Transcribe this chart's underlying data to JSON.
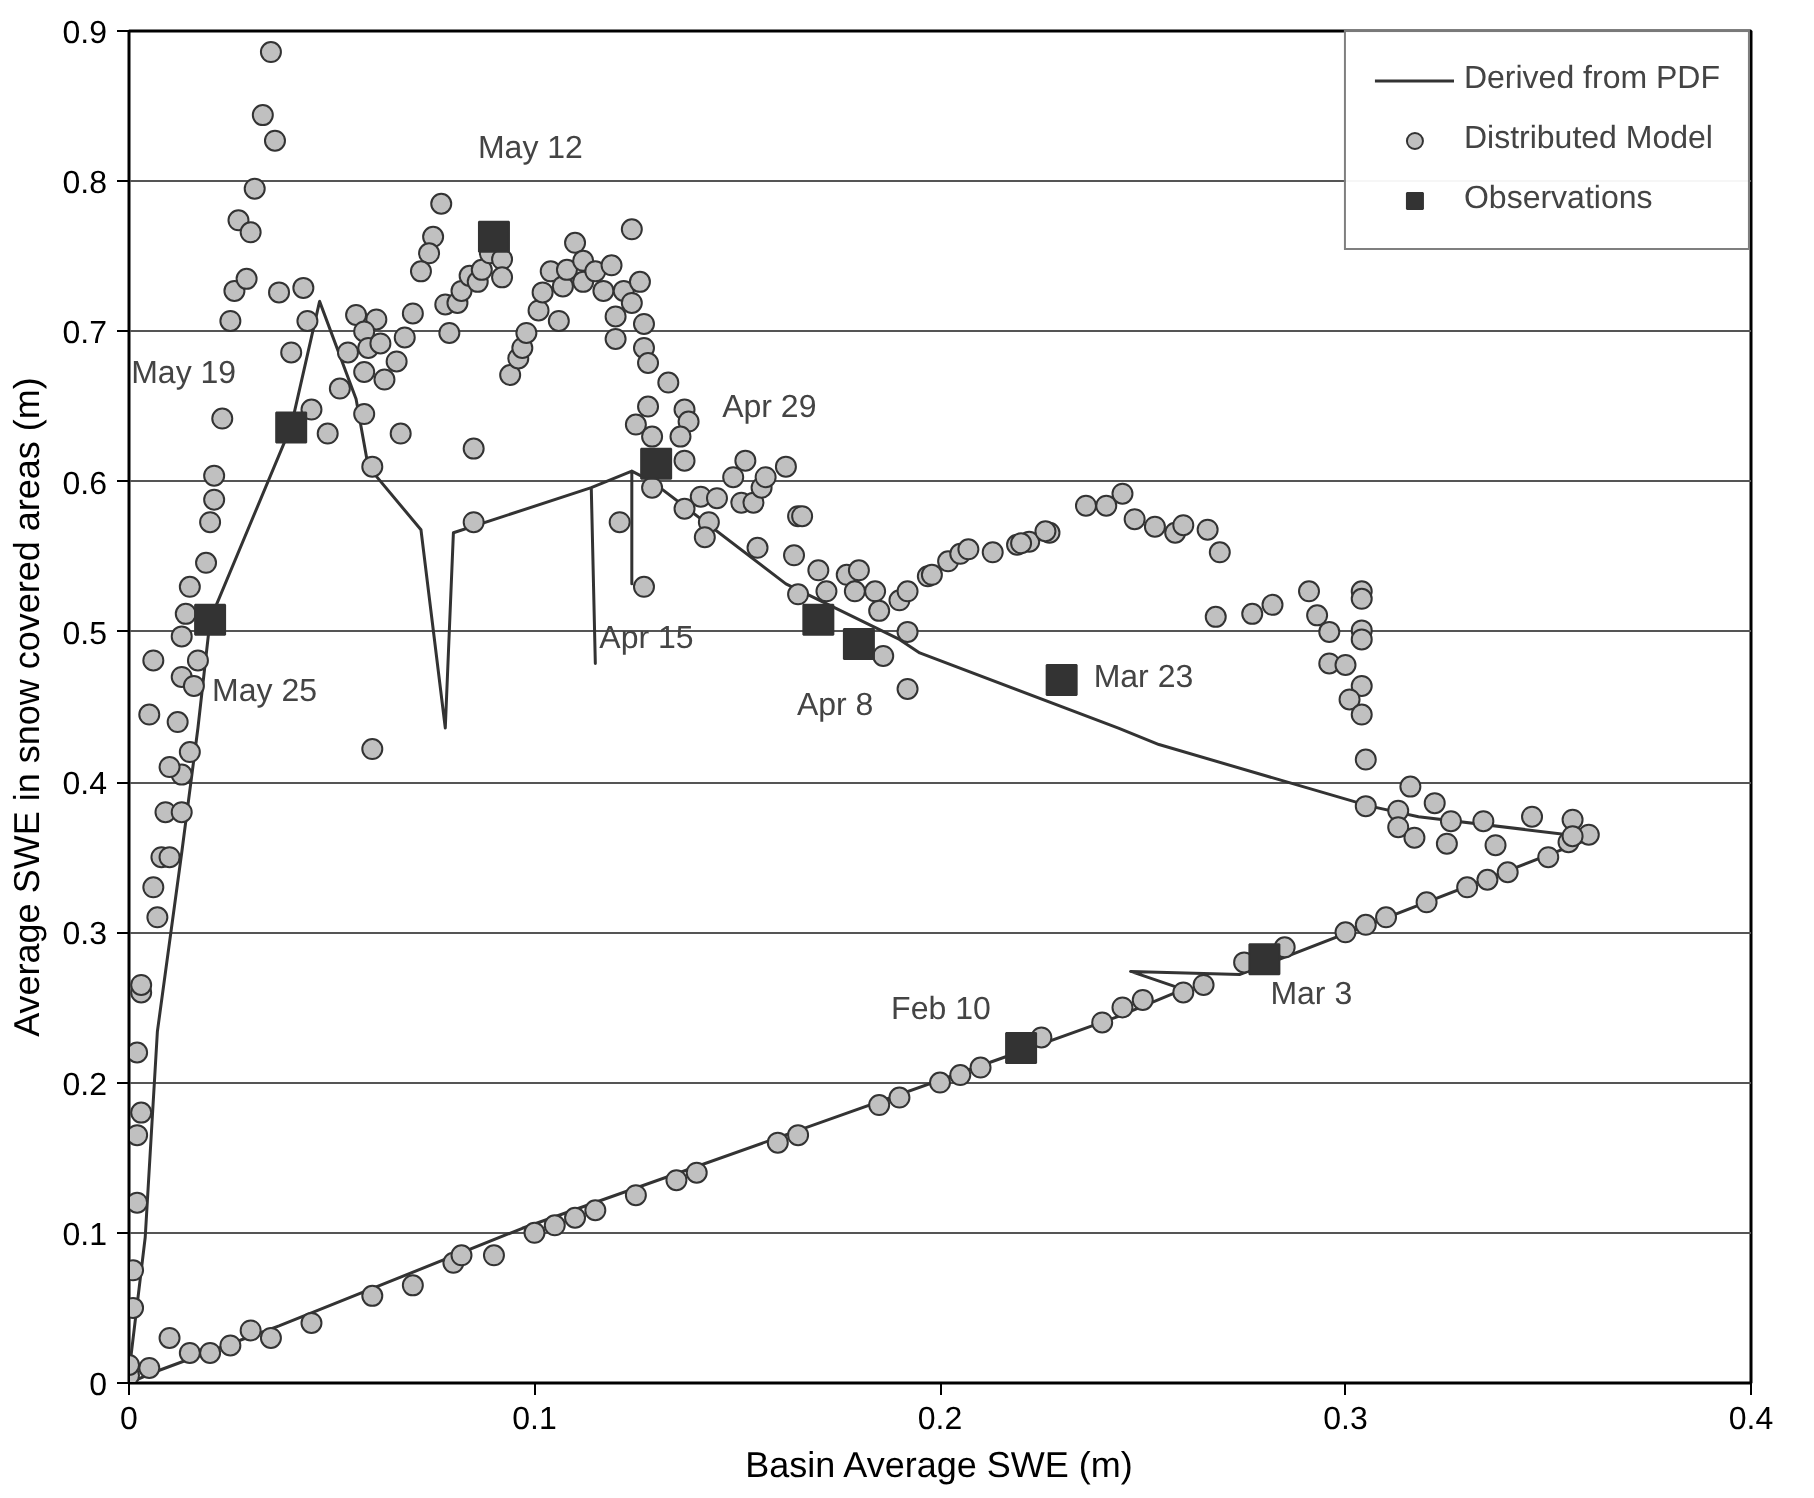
{
  "chart_data": {
    "type": "scatter",
    "xlabel": "Basin Average SWE (m)",
    "ylabel": "Average SWE in snow covered areas (m)",
    "xlim": [
      0,
      0.4
    ],
    "ylim": [
      0,
      0.9
    ],
    "xticks": [
      0,
      0.1,
      0.2,
      0.3,
      0.4
    ],
    "yticks": [
      0,
      0.1,
      0.2,
      0.3,
      0.4,
      0.5,
      0.6,
      0.7,
      0.8,
      0.9
    ],
    "grid": "y",
    "legend": "top right",
    "series": [
      {
        "name": "Derived from PDF",
        "type": "line",
        "marker": "none",
        "color": "#333333",
        "x": [
          0,
          0.007,
          0.037,
          0.097,
          0.215,
          0.244,
          0.26,
          0.247,
          0.274,
          0.361,
          0.318,
          0.306,
          0.254,
          0.244,
          0.195,
          0.19,
          0.162,
          0.129,
          0.124,
          0.124,
          0.124,
          0.114,
          0.115,
          0.114,
          0.08,
          0.078,
          0.072,
          0.059,
          0.056,
          0.047,
          0.04,
          0.02,
          0.017,
          0.013,
          0.007,
          0.004,
          0
        ],
        "values": [
          0,
          0.008,
          0.038,
          0.103,
          0.216,
          0.244,
          0.262,
          0.274,
          0.272,
          0.363,
          0.377,
          0.384,
          0.425,
          0.436,
          0.486,
          0.495,
          0.532,
          0.6,
          0.607,
          0.532,
          0.607,
          0.596,
          0.479,
          0.596,
          0.566,
          0.436,
          0.568,
          0.61,
          0.655,
          0.72,
          0.637,
          0.508,
          0.436,
          0.353,
          0.234,
          0.097,
          0.007
        ]
      },
      {
        "name": "Distributed Model",
        "marker": "circle",
        "color": "#c0c0c0",
        "x": [
          0,
          0,
          0.005,
          0.01,
          0.015,
          0.02,
          0.025,
          0.03,
          0.035,
          0.045,
          0.06,
          0.07,
          0.08,
          0.082,
          0.09,
          0.1,
          0.105,
          0.11,
          0.115,
          0.125,
          0.135,
          0.14,
          0.16,
          0.165,
          0.185,
          0.19,
          0.2,
          0.205,
          0.21,
          0.225,
          0.24,
          0.245,
          0.25,
          0.26,
          0.265,
          0.275,
          0.285,
          0.3,
          0.305,
          0.31,
          0.32,
          0.33,
          0.335,
          0.34,
          0.35,
          0.355,
          0.36,
          0.001,
          0.001,
          0.002,
          0.002,
          0.003,
          0.002,
          0.003,
          0.003,
          0.007,
          0.006,
          0.008,
          0.01,
          0.009,
          0.013,
          0.013,
          0.01,
          0.015,
          0.012,
          0.035,
          0.033,
          0.036,
          0.031,
          0.027,
          0.03,
          0.026,
          0.029,
          0.025,
          0.037,
          0.043,
          0.044,
          0.04,
          0.023,
          0.021,
          0.021,
          0.02,
          0.019,
          0.015,
          0.014,
          0.013,
          0.017,
          0.006,
          0.013,
          0.016,
          0.005,
          0.056,
          0.061,
          0.058,
          0.054,
          0.059,
          0.062,
          0.066,
          0.063,
          0.058,
          0.052,
          0.068,
          0.07,
          0.045,
          0.049,
          0.058,
          0.067,
          0.06,
          0.085,
          0.085,
          0.121,
          0.127,
          0.077,
          0.075,
          0.074,
          0.072,
          0.078,
          0.079,
          0.081,
          0.082,
          0.084,
          0.086,
          0.087,
          0.089,
          0.092,
          0.092,
          0.094,
          0.096,
          0.097,
          0.098,
          0.101,
          0.102,
          0.104,
          0.106,
          0.107,
          0.108,
          0.11,
          0.112,
          0.112,
          0.115,
          0.117,
          0.119,
          0.12,
          0.12,
          0.122,
          0.124,
          0.124,
          0.126,
          0.127,
          0.127,
          0.128,
          0.133,
          0.128,
          0.125,
          0.137,
          0.138,
          0.136,
          0.129,
          0.137,
          0.129,
          0.137,
          0.141,
          0.145,
          0.143,
          0.142,
          0.149,
          0.152,
          0.151,
          0.154,
          0.156,
          0.157,
          0.162,
          0.155,
          0.165,
          0.166,
          0.164,
          0.17,
          0.172,
          0.177,
          0.18,
          0.179,
          0.184,
          0.185,
          0.19,
          0.192,
          0.192,
          0.197,
          0.202,
          0.205,
          0.207,
          0.213,
          0.219,
          0.222,
          0.227,
          0.165,
          0.186,
          0.192,
          0.198,
          0.22,
          0.226,
          0.236,
          0.241,
          0.245,
          0.248,
          0.253,
          0.258,
          0.26,
          0.266,
          0.269,
          0.268,
          0.277,
          0.282,
          0.291,
          0.293,
          0.296,
          0.304,
          0.304,
          0.304,
          0.304,
          0.296,
          0.3,
          0.304,
          0.301,
          0.304,
          0.305,
          0.305,
          0.316,
          0.313,
          0.313,
          0.317,
          0.322,
          0.326,
          0.325,
          0.334,
          0.337,
          0.346,
          0.356,
          0.356,
          0.06
        ],
        "values": [
          0.005,
          0.012,
          0.01,
          0.03,
          0.02,
          0.02,
          0.025,
          0.035,
          0.03,
          0.04,
          0.058,
          0.065,
          0.08,
          0.085,
          0.085,
          0.1,
          0.105,
          0.11,
          0.115,
          0.125,
          0.135,
          0.14,
          0.16,
          0.165,
          0.185,
          0.19,
          0.2,
          0.205,
          0.21,
          0.23,
          0.24,
          0.25,
          0.255,
          0.26,
          0.265,
          0.28,
          0.29,
          0.3,
          0.305,
          0.31,
          0.32,
          0.33,
          0.335,
          0.34,
          0.35,
          0.36,
          0.365,
          0.05,
          0.075,
          0.12,
          0.165,
          0.18,
          0.22,
          0.26,
          0.265,
          0.31,
          0.33,
          0.35,
          0.35,
          0.38,
          0.38,
          0.405,
          0.41,
          0.42,
          0.44,
          0.886,
          0.844,
          0.827,
          0.795,
          0.774,
          0.766,
          0.727,
          0.735,
          0.707,
          0.726,
          0.729,
          0.707,
          0.686,
          0.642,
          0.604,
          0.588,
          0.573,
          0.546,
          0.53,
          0.512,
          0.497,
          0.481,
          0.481,
          0.47,
          0.464,
          0.445,
          0.711,
          0.708,
          0.7,
          0.686,
          0.689,
          0.692,
          0.68,
          0.668,
          0.673,
          0.662,
          0.696,
          0.712,
          0.648,
          0.632,
          0.645,
          0.632,
          0.61,
          0.622,
          0.573,
          0.573,
          0.53,
          0.785,
          0.763,
          0.752,
          0.74,
          0.718,
          0.699,
          0.719,
          0.727,
          0.737,
          0.733,
          0.741,
          0.752,
          0.748,
          0.736,
          0.671,
          0.682,
          0.689,
          0.699,
          0.714,
          0.726,
          0.74,
          0.707,
          0.73,
          0.741,
          0.759,
          0.747,
          0.733,
          0.74,
          0.727,
          0.744,
          0.71,
          0.695,
          0.727,
          0.768,
          0.719,
          0.733,
          0.705,
          0.689,
          0.679,
          0.666,
          0.65,
          0.638,
          0.648,
          0.64,
          0.63,
          0.63,
          0.614,
          0.596,
          0.582,
          0.59,
          0.589,
          0.573,
          0.563,
          0.603,
          0.614,
          0.586,
          0.586,
          0.596,
          0.603,
          0.61,
          0.556,
          0.577,
          0.577,
          0.551,
          0.541,
          0.527,
          0.538,
          0.541,
          0.527,
          0.527,
          0.514,
          0.521,
          0.527,
          0.5,
          0.537,
          0.547,
          0.552,
          0.555,
          0.553,
          0.558,
          0.56,
          0.566,
          0.525,
          0.484,
          0.462,
          0.538,
          0.559,
          0.567,
          0.584,
          0.584,
          0.592,
          0.575,
          0.57,
          0.566,
          0.571,
          0.568,
          0.553,
          0.51,
          0.512,
          0.518,
          0.527,
          0.511,
          0.5,
          0.527,
          0.522,
          0.501,
          0.495,
          0.479,
          0.478,
          0.464,
          0.455,
          0.445,
          0.415,
          0.384,
          0.397,
          0.381,
          0.37,
          0.363,
          0.386,
          0.374,
          0.359,
          0.374,
          0.358,
          0.377,
          0.375,
          0.364,
          0.422
        ]
      },
      {
        "name": "Observations",
        "marker": "square",
        "color": "#333333",
        "x": [
          0.02,
          0.04,
          0.09,
          0.13,
          0.17,
          0.18,
          0.23,
          0.22,
          0.28
        ],
        "values": [
          0.508,
          0.636,
          0.763,
          0.612,
          0.508,
          0.492,
          0.468,
          0.223,
          0.282
        ]
      }
    ],
    "annotations": [
      {
        "text": "May 12",
        "x": 0.09,
        "y": 0.763
      },
      {
        "text": "May 19",
        "x": 0.04,
        "y": 0.636
      },
      {
        "text": "May 25",
        "x": 0.02,
        "y": 0.508
      },
      {
        "text": "Apr 29",
        "x": 0.13,
        "y": 0.612
      },
      {
        "text": "Apr 15",
        "x": 0.115,
        "y": 0.479
      },
      {
        "text": "Apr 8",
        "x": 0.18,
        "y": 0.492
      },
      {
        "text": "Mar 23",
        "x": 0.23,
        "y": 0.468
      },
      {
        "text": "Feb 10",
        "x": 0.22,
        "y": 0.223
      },
      {
        "text": "Mar 3",
        "x": 0.28,
        "y": 0.282
      }
    ]
  }
}
